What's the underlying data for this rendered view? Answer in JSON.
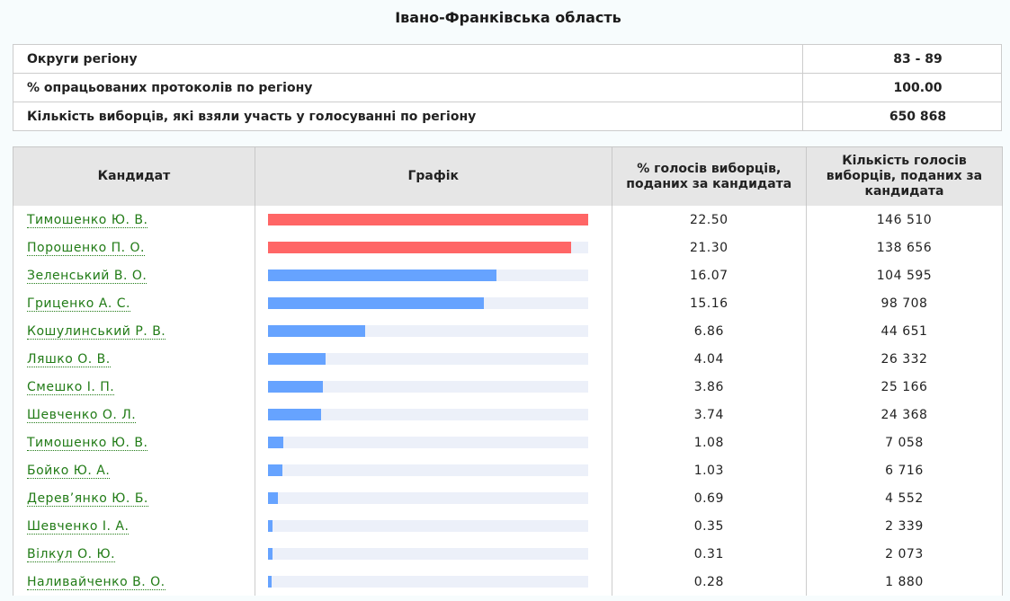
{
  "title": "Івано-Франківська область",
  "summary": [
    {
      "label": "Округи регіону",
      "value": "83 - 89"
    },
    {
      "label": "% опрацьованих протоколів по регіону",
      "value": "100.00"
    },
    {
      "label": "Кількість виборців, які взяли участь у голосуванні по регіону",
      "value": "650 868"
    }
  ],
  "table": {
    "headers": {
      "candidate": "Кандидат",
      "chart": "Графік",
      "percent": "% голосів виборців, поданих за кандидата",
      "votes": "Кількість голосів виборців, поданих за кандидата"
    },
    "max_percent": 22.5,
    "colors": {
      "top": "#ff6666",
      "other": "#66a3ff",
      "track": "#ecf0f9",
      "link": "#217b16"
    },
    "rows": [
      {
        "name": "Тимошенко Ю. В.",
        "percent": "22.50",
        "votes": "146 510",
        "pct": 22.5,
        "highlight": true
      },
      {
        "name": "Порошенко П. О.",
        "percent": "21.30",
        "votes": "138 656",
        "pct": 21.3,
        "highlight": true
      },
      {
        "name": "Зеленський В. О.",
        "percent": "16.07",
        "votes": "104 595",
        "pct": 16.07,
        "highlight": false
      },
      {
        "name": "Гриценко А. С.",
        "percent": "15.16",
        "votes": "98 708",
        "pct": 15.16,
        "highlight": false
      },
      {
        "name": "Кошулинський Р. В.",
        "percent": "6.86",
        "votes": "44 651",
        "pct": 6.86,
        "highlight": false
      },
      {
        "name": "Ляшко О. В.",
        "percent": "4.04",
        "votes": "26 332",
        "pct": 4.04,
        "highlight": false
      },
      {
        "name": "Смешко І. П.",
        "percent": "3.86",
        "votes": "25 166",
        "pct": 3.86,
        "highlight": false
      },
      {
        "name": "Шевченко О. Л.",
        "percent": "3.74",
        "votes": "24 368",
        "pct": 3.74,
        "highlight": false
      },
      {
        "name": "Тимошенко Ю. В.",
        "percent": "1.08",
        "votes": "7 058",
        "pct": 1.08,
        "highlight": false
      },
      {
        "name": "Бойко Ю. А.",
        "percent": "1.03",
        "votes": "6 716",
        "pct": 1.03,
        "highlight": false
      },
      {
        "name": "Дерев’янко Ю. Б.",
        "percent": "0.69",
        "votes": "4 552",
        "pct": 0.69,
        "highlight": false
      },
      {
        "name": "Шевченко І. А.",
        "percent": "0.35",
        "votes": "2 339",
        "pct": 0.35,
        "highlight": false
      },
      {
        "name": "Вілкул О. Ю.",
        "percent": "0.31",
        "votes": "2 073",
        "pct": 0.31,
        "highlight": false
      },
      {
        "name": "Наливайченко В. О.",
        "percent": "0.28",
        "votes": "1 880",
        "pct": 0.28,
        "highlight": false
      }
    ]
  }
}
